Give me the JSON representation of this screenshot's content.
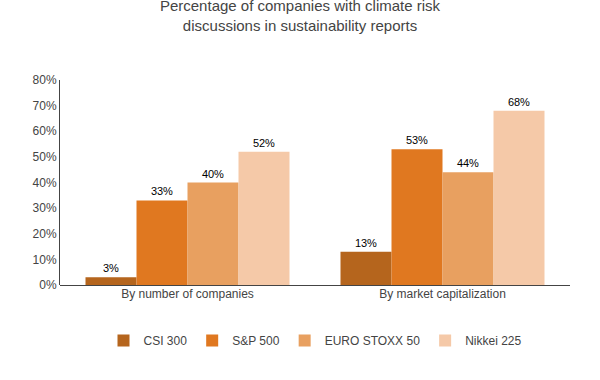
{
  "chart_data": {
    "type": "bar",
    "title": "Percentage of companies with climate risk\ndiscussions in sustainability reports",
    "categories": [
      "By number of companies",
      "By market capitalization"
    ],
    "series": [
      {
        "name": "CSI 300",
        "color": "#B5651D",
        "values": [
          3,
          13
        ],
        "value_labels": [
          "3%",
          "13%"
        ]
      },
      {
        "name": "S&P 500",
        "color": "#E07820",
        "values": [
          33,
          53
        ],
        "value_labels": [
          "33%",
          "53%"
        ]
      },
      {
        "name": "EURO STOXX 50",
        "color": "#E8A060",
        "values": [
          40,
          44
        ],
        "value_labels": [
          "40%",
          "44%"
        ]
      },
      {
        "name": "Nikkei 225",
        "color": "#F5C9A8",
        "values": [
          52,
          68
        ],
        "value_labels": [
          "52%",
          "68%"
        ]
      }
    ],
    "ylim": [
      0,
      80
    ],
    "yticks": [
      {
        "value": 0,
        "label": "0%"
      },
      {
        "value": 10,
        "label": "10%"
      },
      {
        "value": 20,
        "label": "20%"
      },
      {
        "value": 30,
        "label": "30%"
      },
      {
        "value": 40,
        "label": "40%"
      },
      {
        "value": 50,
        "label": "50%"
      },
      {
        "value": 60,
        "label": "60%"
      },
      {
        "value": 70,
        "label": "70%"
      },
      {
        "value": 80,
        "label": "80%"
      }
    ],
    "grid": false,
    "legend": "bottom",
    "data_labels": true
  }
}
